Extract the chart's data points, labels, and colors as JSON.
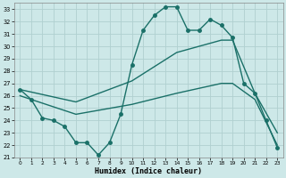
{
  "xlabel": "Humidex (Indice chaleur)",
  "bg_color": "#cde8e8",
  "grid_color": "#b0d0d0",
  "line_color": "#1a7068",
  "xlim": [
    -0.5,
    23.5
  ],
  "ylim": [
    21,
    33.5
  ],
  "yticks": [
    21,
    22,
    23,
    24,
    25,
    26,
    27,
    28,
    29,
    30,
    31,
    32,
    33
  ],
  "xticks": [
    0,
    1,
    2,
    3,
    4,
    5,
    6,
    7,
    8,
    9,
    10,
    11,
    12,
    13,
    14,
    15,
    16,
    17,
    18,
    19,
    20,
    21,
    22,
    23
  ],
  "line1_x": [
    0,
    1,
    2,
    3,
    4,
    5,
    6,
    7,
    8,
    9,
    10,
    11,
    12,
    13,
    14,
    15,
    16,
    17,
    18,
    19,
    20,
    21,
    22,
    23
  ],
  "line1_y": [
    26.5,
    25.7,
    24.2,
    24.0,
    23.5,
    22.2,
    22.2,
    21.2,
    22.2,
    24.5,
    28.5,
    31.3,
    32.5,
    33.2,
    33.2,
    31.3,
    31.3,
    32.2,
    31.7,
    30.7,
    27.0,
    26.2,
    24.0,
    21.8
  ],
  "line2_x": [
    0,
    5,
    10,
    14,
    18,
    19,
    21,
    23
  ],
  "line2_y": [
    26.5,
    25.5,
    27.2,
    29.5,
    30.5,
    30.5,
    26.2,
    23.0
  ],
  "line3_x": [
    0,
    5,
    10,
    14,
    18,
    19,
    21,
    23
  ],
  "line3_y": [
    26.0,
    24.5,
    25.3,
    26.2,
    27.0,
    27.0,
    25.7,
    22.0
  ],
  "marker_size": 2.5,
  "line_width": 1.0
}
